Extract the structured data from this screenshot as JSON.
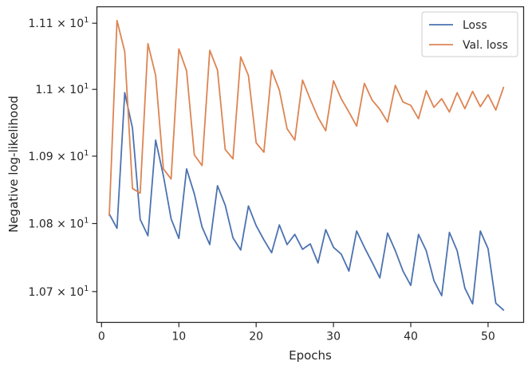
{
  "chart_data": {
    "type": "line",
    "xlabel": "Epochs",
    "ylabel": "Negative log-likelihood",
    "xlim": [
      -0.6,
      54.6
    ],
    "ylim": [
      10.655,
      11.125
    ],
    "y_scale": "log",
    "x_ticks": [
      0,
      10,
      20,
      30,
      40,
      50
    ],
    "y_ticks": [
      {
        "value": 10.7,
        "mantissa": "1.07",
        "exp": "1"
      },
      {
        "value": 10.8,
        "mantissa": "1.08",
        "exp": "1"
      },
      {
        "value": 10.9,
        "mantissa": "1.09",
        "exp": "1"
      },
      {
        "value": 11.0,
        "mantissa": "1.1",
        "exp": "1"
      },
      {
        "value": 11.1,
        "mantissa": "1.11",
        "exp": "1"
      }
    ],
    "grid": false,
    "legend_position": "top-right",
    "series": [
      {
        "name": "Loss",
        "color": "#4c72b0",
        "x": [
          1,
          2,
          3,
          4,
          5,
          6,
          7,
          8,
          9,
          10,
          11,
          12,
          13,
          14,
          15,
          16,
          17,
          18,
          19,
          20,
          21,
          22,
          23,
          24,
          25,
          26,
          27,
          28,
          29,
          30,
          31,
          32,
          33,
          34,
          35,
          36,
          37,
          38,
          39,
          40,
          41,
          42,
          43,
          44,
          45,
          46,
          47,
          48,
          49,
          50,
          51,
          52
        ],
        "y": [
          10.814,
          10.793,
          10.995,
          10.942,
          10.806,
          10.782,
          10.924,
          10.871,
          10.807,
          10.778,
          10.881,
          10.844,
          10.795,
          10.769,
          10.856,
          10.827,
          10.779,
          10.761,
          10.826,
          10.797,
          10.776,
          10.757,
          10.798,
          10.769,
          10.784,
          10.762,
          10.77,
          10.742,
          10.791,
          10.765,
          10.755,
          10.73,
          10.789,
          10.765,
          10.743,
          10.72,
          10.786,
          10.76,
          10.73,
          10.709,
          10.784,
          10.76,
          10.716,
          10.694,
          10.787,
          10.76,
          10.705,
          10.682,
          10.789,
          10.763,
          10.683,
          10.673
        ]
      },
      {
        "name": "Val. loss",
        "color": "#dd8452",
        "x": [
          1,
          2,
          3,
          4,
          5,
          6,
          7,
          8,
          9,
          10,
          11,
          12,
          13,
          14,
          15,
          16,
          17,
          18,
          19,
          20,
          21,
          22,
          23,
          24,
          25,
          26,
          27,
          28,
          29,
          30,
          31,
          32,
          33,
          34,
          35,
          36,
          37,
          38,
          39,
          40,
          41,
          42,
          43,
          44,
          45,
          46,
          47,
          48,
          49,
          50,
          51,
          52
        ],
        "y": [
          10.812,
          11.104,
          11.057,
          10.852,
          10.845,
          11.069,
          11.021,
          10.881,
          10.866,
          11.061,
          11.028,
          10.902,
          10.886,
          11.059,
          11.029,
          10.91,
          10.896,
          11.049,
          11.021,
          10.92,
          10.906,
          11.029,
          10.999,
          10.941,
          10.924,
          11.014,
          10.985,
          10.958,
          10.938,
          11.013,
          10.986,
          10.966,
          10.945,
          11.009,
          10.984,
          10.97,
          10.951,
          11.006,
          10.981,
          10.976,
          10.956,
          10.998,
          10.973,
          10.986,
          10.966,
          10.995,
          10.971,
          10.997,
          10.974,
          10.992,
          10.969,
          11.003
        ]
      }
    ]
  }
}
